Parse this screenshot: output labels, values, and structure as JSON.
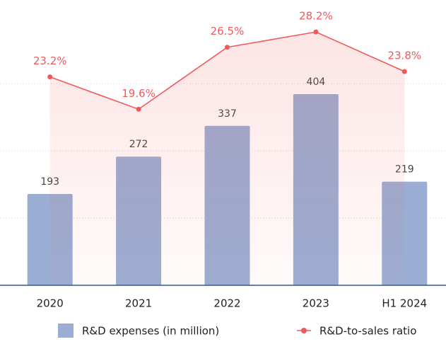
{
  "chart_data": {
    "type": "bar_line",
    "categories": [
      "2020",
      "2021",
      "2022",
      "2023",
      "H1 2024"
    ],
    "series": [
      {
        "name": "R&D expenses (in million)",
        "type": "bar",
        "color": "#9aaed3",
        "values": [
          193,
          272,
          337,
          404,
          219
        ]
      },
      {
        "name": "R&D-to-sales ratio",
        "type": "line",
        "axis": "y2",
        "color": "#f0595a",
        "values": [
          23.2,
          19.6,
          26.5,
          28.2,
          23.8
        ],
        "value_labels": [
          "23.2%",
          "19.6%",
          "26.5%",
          "28.2%",
          "23.8%"
        ]
      }
    ],
    "ylim": [
      0,
      600
    ],
    "yticks": [
      0,
      142,
      284,
      426
    ],
    "y2lim": [
      0,
      31.6
    ],
    "grid": true
  }
}
